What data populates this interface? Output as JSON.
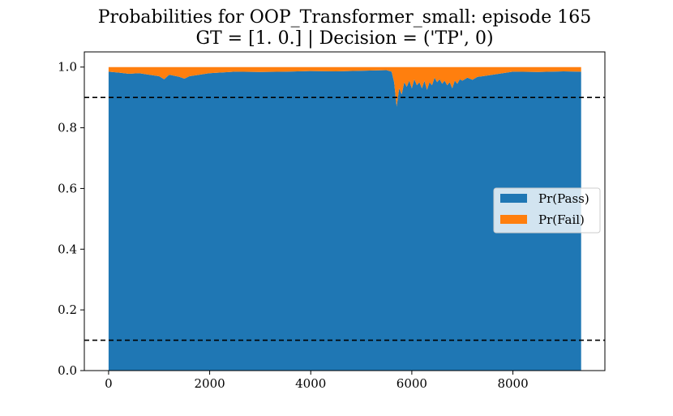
{
  "chart_data": {
    "type": "area",
    "title": "Probabilities for OOP_Transformer_small: episode 165",
    "subtitle": "GT = [1. 0.] | Decision = ('TP', 0)",
    "xlabel": "",
    "ylabel": "",
    "xlim": [
      -480,
      9820
    ],
    "ylim": [
      0.0,
      1.05
    ],
    "xticks": [
      0,
      2000,
      4000,
      6000,
      8000
    ],
    "xtick_labels": [
      "0",
      "2000",
      "4000",
      "6000",
      "8000"
    ],
    "yticks": [
      0.0,
      0.2,
      0.4,
      0.6,
      0.8,
      1.0
    ],
    "ytick_labels": [
      "0.0",
      "0.2",
      "0.4",
      "0.6",
      "0.8",
      "1.0"
    ],
    "x_range": [
      0,
      9350
    ],
    "stacked": true,
    "grid": false,
    "legend_position": "center-right",
    "thresholds": [
      0.9,
      0.1
    ],
    "threshold_style": "dashed-black",
    "series": [
      {
        "name": "Pr(Pass)",
        "color": "#1f77b4",
        "x": [
          0,
          200,
          400,
          600,
          800,
          1000,
          1100,
          1200,
          1400,
          1500,
          1600,
          1800,
          2000,
          2200,
          2500,
          3000,
          3500,
          4000,
          4500,
          5000,
          5500,
          5600,
          5650,
          5700,
          5750,
          5800,
          5850,
          5900,
          5950,
          6000,
          6050,
          6100,
          6150,
          6200,
          6250,
          6300,
          6350,
          6400,
          6450,
          6500,
          6550,
          6600,
          6650,
          6700,
          6750,
          6800,
          6850,
          6900,
          6950,
          7000,
          7100,
          7200,
          7300,
          7400,
          7600,
          7800,
          8000,
          8500,
          9000,
          9350
        ],
        "values": [
          0.985,
          0.982,
          0.978,
          0.98,
          0.975,
          0.97,
          0.96,
          0.975,
          0.968,
          0.962,
          0.97,
          0.975,
          0.98,
          0.982,
          0.985,
          0.984,
          0.985,
          0.987,
          0.986,
          0.988,
          0.99,
          0.985,
          0.95,
          0.87,
          0.93,
          0.91,
          0.95,
          0.935,
          0.955,
          0.93,
          0.96,
          0.94,
          0.95,
          0.93,
          0.955,
          0.925,
          0.95,
          0.94,
          0.965,
          0.95,
          0.96,
          0.945,
          0.955,
          0.94,
          0.95,
          0.93,
          0.955,
          0.945,
          0.96,
          0.955,
          0.965,
          0.958,
          0.968,
          0.97,
          0.975,
          0.98,
          0.985,
          0.984,
          0.986,
          0.985
        ]
      },
      {
        "name": "Pr(Fail)",
        "color": "#ff7f0e",
        "x": [
          0,
          200,
          400,
          600,
          800,
          1000,
          1100,
          1200,
          1400,
          1500,
          1600,
          1800,
          2000,
          2200,
          2500,
          3000,
          3500,
          4000,
          4500,
          5000,
          5500,
          5600,
          5650,
          5700,
          5750,
          5800,
          5850,
          5900,
          5950,
          6000,
          6050,
          6100,
          6150,
          6200,
          6250,
          6300,
          6350,
          6400,
          6450,
          6500,
          6550,
          6600,
          6650,
          6700,
          6750,
          6800,
          6850,
          6900,
          6950,
          7000,
          7100,
          7200,
          7300,
          7400,
          7600,
          7800,
          8000,
          8500,
          9000,
          9350
        ],
        "values": [
          0.015,
          0.018,
          0.022,
          0.02,
          0.025,
          0.03,
          0.04,
          0.025,
          0.032,
          0.038,
          0.03,
          0.025,
          0.02,
          0.018,
          0.015,
          0.016,
          0.015,
          0.013,
          0.014,
          0.012,
          0.01,
          0.015,
          0.05,
          0.13,
          0.07,
          0.09,
          0.05,
          0.065,
          0.045,
          0.07,
          0.04,
          0.06,
          0.05,
          0.07,
          0.045,
          0.075,
          0.05,
          0.06,
          0.035,
          0.05,
          0.04,
          0.055,
          0.045,
          0.06,
          0.05,
          0.07,
          0.045,
          0.055,
          0.04,
          0.045,
          0.035,
          0.042,
          0.032,
          0.03,
          0.025,
          0.02,
          0.015,
          0.016,
          0.014,
          0.015
        ]
      }
    ]
  }
}
